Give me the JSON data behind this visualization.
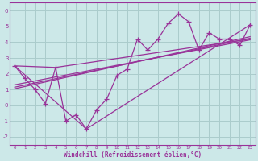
{
  "xlabel": "Windchill (Refroidissement éolien,°C)",
  "bg_color": "#cce8e8",
  "grid_color": "#aacccc",
  "line_color": "#993399",
  "xlim": [
    -0.5,
    23.5
  ],
  "ylim": [
    -2.5,
    6.5
  ],
  "xticks": [
    0,
    1,
    2,
    3,
    4,
    5,
    6,
    7,
    8,
    9,
    10,
    11,
    12,
    13,
    14,
    15,
    16,
    17,
    18,
    19,
    20,
    21,
    22,
    23
  ],
  "yticks": [
    -2,
    -1,
    0,
    1,
    2,
    3,
    4,
    5,
    6
  ],
  "data_x": [
    0,
    1,
    2,
    3,
    4,
    5,
    6,
    7,
    8,
    9,
    10,
    11,
    12,
    13,
    14,
    15,
    16,
    17,
    18,
    19,
    20,
    21,
    22,
    23
  ],
  "data_y": [
    2.5,
    1.7,
    1.0,
    0.1,
    2.4,
    -1.0,
    -0.6,
    -1.5,
    -0.3,
    0.4,
    1.9,
    2.3,
    4.2,
    3.5,
    4.2,
    5.2,
    5.8,
    5.3,
    3.5,
    4.6,
    4.2,
    4.2,
    3.8,
    5.1
  ],
  "reg_lines": [
    {
      "x": [
        0,
        23
      ],
      "y": [
        1.3,
        4.15
      ]
    },
    {
      "x": [
        0,
        23
      ],
      "y": [
        1.05,
        4.35
      ]
    },
    {
      "x": [
        0,
        23
      ],
      "y": [
        1.15,
        4.25
      ]
    }
  ],
  "extra_lines": [
    {
      "x": [
        0,
        4,
        23
      ],
      "y": [
        2.5,
        2.4,
        4.2
      ]
    },
    {
      "x": [
        0,
        7,
        23
      ],
      "y": [
        2.5,
        -1.5,
        5.1
      ]
    }
  ]
}
